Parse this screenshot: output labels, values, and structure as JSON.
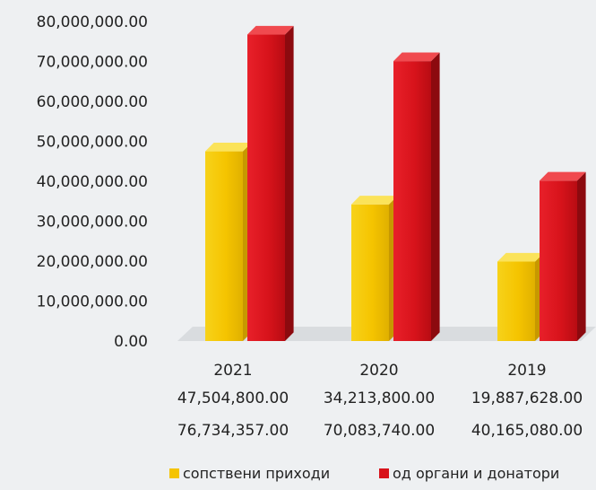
{
  "chart_data": {
    "type": "bar",
    "categories": [
      "2021",
      "2020",
      "2019"
    ],
    "series": [
      {
        "name": "сопствени приходи",
        "values": [
          47504800.0,
          34213800.0,
          19887628.0
        ],
        "color": "#f5c400"
      },
      {
        "name": "од органи и донатори",
        "values": [
          76734357.0,
          70083740.0,
          40165080.0
        ],
        "color": "#d8131b"
      }
    ],
    "value_labels": [
      [
        "47,504,800.00",
        "34,213,800.00",
        "19,887,628.00"
      ],
      [
        "76,734,357.00",
        "70,083,740.00",
        "40,165,080.00"
      ]
    ],
    "y_ticks": [
      "0.00",
      "10,000,000.00",
      "20,000,000.00",
      "30,000,000.00",
      "40,000,000.00",
      "50,000,000.00",
      "60,000,000.00",
      "70,000,000.00",
      "80,000,000.00"
    ],
    "ylim": [
      0,
      80000000
    ],
    "grid": false,
    "legend_position": "bottom-right",
    "style": "3d-columns"
  }
}
